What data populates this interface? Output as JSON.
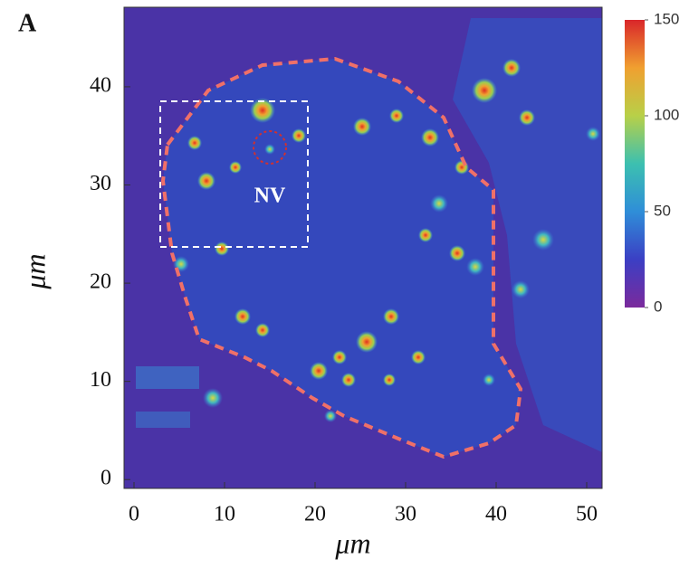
{
  "chart_data": {
    "type": "heatmap",
    "panel_label": "A",
    "annotation": "NV",
    "xlabel": "μm",
    "ylabel": "μm",
    "xlim": [
      -1.1,
      51.7
    ],
    "ylim": [
      -0.9,
      48.1
    ],
    "xticks": [
      0,
      10,
      20,
      30,
      40,
      50
    ],
    "yticks": [
      0,
      10,
      20,
      30,
      40
    ],
    "clim": [
      0,
      150
    ],
    "cticks": [
      0,
      50,
      100,
      150
    ],
    "colormap": [
      "#7b2a9c",
      "#3b3fc4",
      "#2f8ed8",
      "#3cc0b0",
      "#b8d048",
      "#f0a030",
      "#d9262a"
    ]
  }
}
